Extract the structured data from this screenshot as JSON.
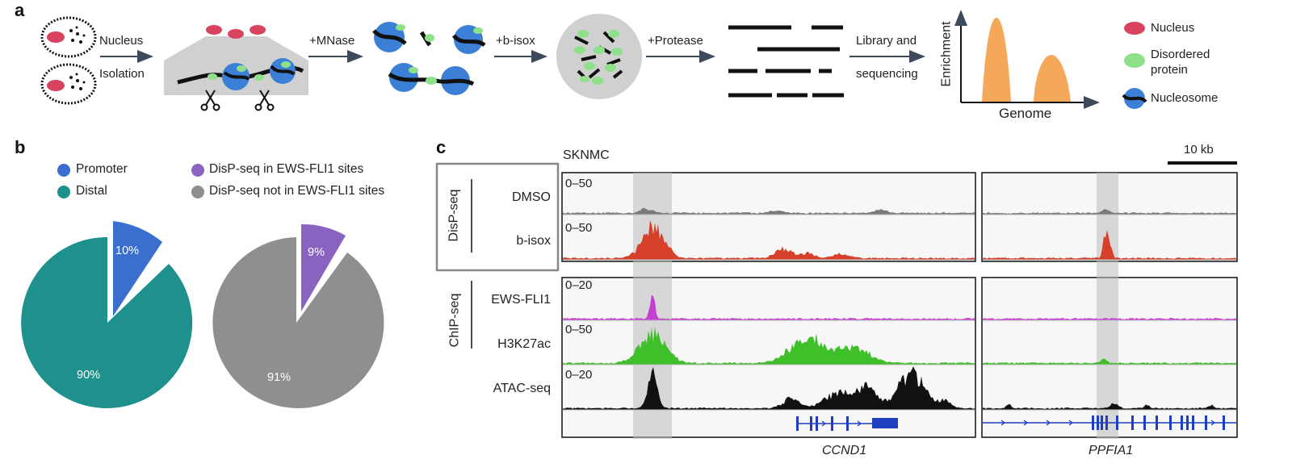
{
  "panel_a": {
    "label": "a",
    "step_nucleus": "Nucleus",
    "step_isolation": "Isolation",
    "step_mnase": "+MNase",
    "step_bisox": "+b-isox",
    "step_protease": "+Protease",
    "step_library": "Library and",
    "step_sequencing": "sequencing",
    "plot_ylabel": "Enrichment",
    "plot_xlabel": "Genome",
    "legend": {
      "nucleus": "Nucleus",
      "disordered_line1": "Disordered",
      "disordered_line2": "protein",
      "nucleosome": "Nucleosome"
    },
    "colors": {
      "nucleus": "#d9435f",
      "protein": "#8fe08a",
      "nucleosome": "#3b7fd6",
      "peak": "#f6a85a"
    }
  },
  "panel_b": {
    "label": "b",
    "legend": [
      {
        "label": "Promoter",
        "color": "#3a6fd0"
      },
      {
        "label": "Distal",
        "color": "#1e918d"
      },
      {
        "label": "DisP-seq in EWS-FLI1 sites",
        "color": "#8a63c0"
      },
      {
        "label": "DisP-seq not in EWS-FLI1 sites",
        "color": "#8f8f8f"
      }
    ],
    "pie1": {
      "small_label": "10%",
      "large_label": "90%"
    },
    "pie2": {
      "small_label": "9%",
      "large_label": "91%"
    }
  },
  "panel_c": {
    "label": "c",
    "cell_line": "SKNMC",
    "scale_label": "10 kb",
    "group_disp": "DisP-seq",
    "group_chip": "ChIP-seq",
    "tracks": [
      {
        "name": "DMSO",
        "range": "0–50",
        "color": "#7a7a7a"
      },
      {
        "name": "b-isox",
        "range": "0–50",
        "color": "#d6402a"
      },
      {
        "name": "EWS-FLI1",
        "range": "0–20",
        "color": "#c43fd0"
      },
      {
        "name": "H3K27ac",
        "range": "0–50",
        "color": "#3fbf2a"
      },
      {
        "name": "ATAC-seq",
        "range": "0–20",
        "color": "#111111"
      }
    ],
    "gene_left": "CCND1",
    "gene_right": "PPFIA1",
    "gene_color": "#1f3fbf"
  },
  "chart_data": [
    {
      "type": "pie",
      "categories": [
        "Promoter",
        "Distal"
      ],
      "values": [
        10,
        90
      ],
      "labels": [
        "10%",
        "90%"
      ]
    },
    {
      "type": "pie",
      "categories": [
        "DisP-seq in EWS-FLI1 sites",
        "DisP-seq not in EWS-FLI1 sites"
      ],
      "values": [
        9,
        91
      ],
      "labels": [
        "9%",
        "91%"
      ]
    }
  ]
}
